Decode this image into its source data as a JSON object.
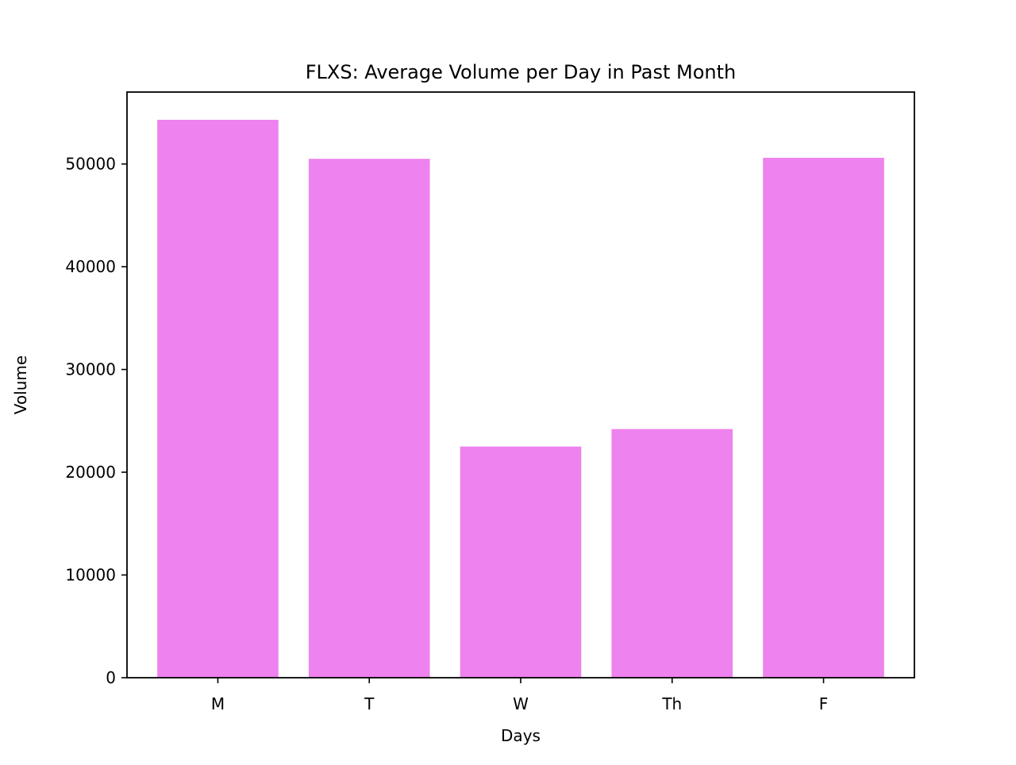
{
  "chart_data": {
    "type": "bar",
    "title": "FLXS: Average Volume per Day in Past Month",
    "xlabel": "Days",
    "ylabel": "Volume",
    "categories": [
      "M",
      "T",
      "W",
      "Th",
      "F"
    ],
    "values": [
      54300,
      50500,
      22500,
      24200,
      50600
    ],
    "ylim": [
      0,
      57000
    ],
    "yticks": [
      0,
      10000,
      20000,
      30000,
      40000,
      50000
    ],
    "ytick_labels": [
      "0",
      "10000",
      "20000",
      "30000",
      "40000",
      "50000"
    ],
    "grid": false,
    "legend": "none",
    "bar_color": "#EE82EE"
  }
}
